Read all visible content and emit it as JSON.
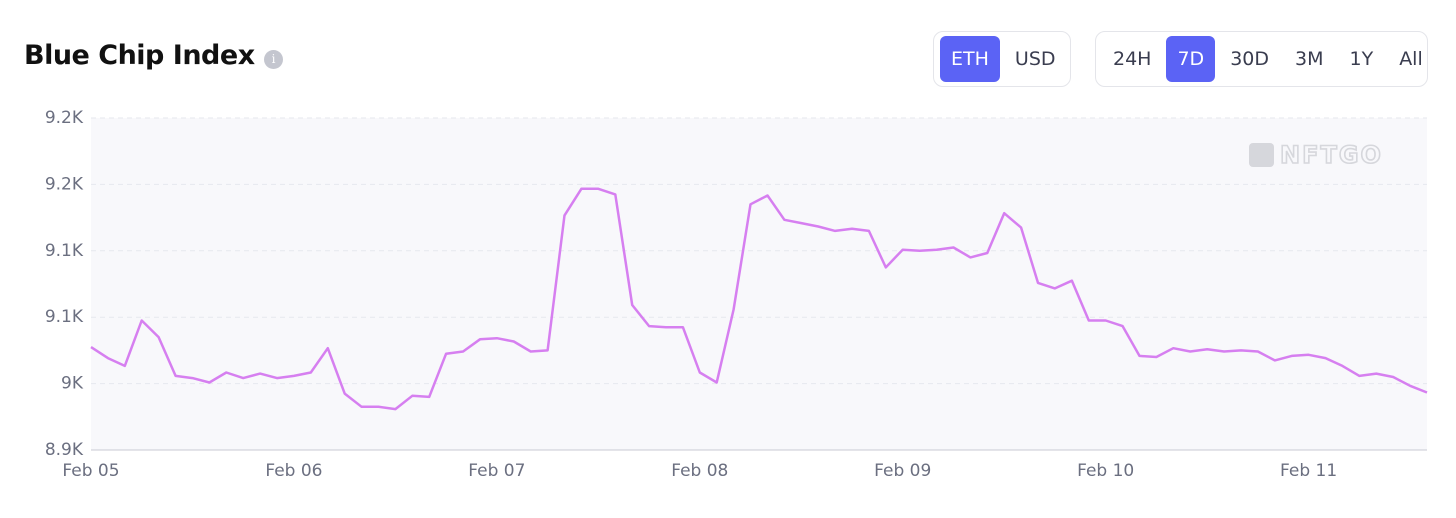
{
  "header": {
    "title": "Blue Chip Index",
    "info_icon": "i"
  },
  "currency_toggle": {
    "options": [
      "ETH",
      "USD"
    ],
    "selected": 0
  },
  "range_toggle": {
    "options": [
      "24H",
      "7D",
      "30D",
      "3M",
      "1Y",
      "All"
    ],
    "selected": 1
  },
  "chart_data": {
    "type": "line",
    "watermark": "NFTGO",
    "categories": [
      "Feb 05",
      null,
      null,
      null,
      null,
      null,
      null,
      null,
      null,
      null,
      null,
      null,
      "Feb 06",
      null,
      null,
      null,
      null,
      null,
      null,
      null,
      null,
      null,
      null,
      null,
      "Feb 07",
      null,
      null,
      null,
      null,
      null,
      null,
      null,
      null,
      null,
      null,
      null,
      "Feb 08",
      null,
      null,
      null,
      null,
      null,
      null,
      null,
      null,
      null,
      null,
      null,
      "Feb 09",
      null,
      null,
      null,
      null,
      null,
      null,
      null,
      null,
      null,
      null,
      null,
      "Feb 10",
      null,
      null,
      null,
      null,
      null,
      null,
      null,
      null,
      null,
      null,
      null,
      "Feb 11",
      null,
      null,
      null,
      null,
      null,
      null,
      null
    ],
    "series": [
      {
        "name": "Blue Chip Index",
        "color": "#d67ff0",
        "values": [
          9033,
          9023,
          9016,
          9057,
          9042,
          9007,
          9005,
          9001,
          9010,
          9005,
          9009,
          9005,
          9007,
          9010,
          9032,
          8991,
          8979,
          8979,
          8977,
          8989,
          8988,
          9027,
          9029,
          9040,
          9041,
          9038,
          9029,
          9030,
          9152,
          9176,
          9176,
          9171,
          9071,
          9052,
          9051,
          9051,
          9010,
          9001,
          9067,
          9162,
          9170,
          9148,
          9145,
          9142,
          9138,
          9140,
          9138,
          9105,
          9121,
          9120,
          9121,
          9123,
          9114,
          9118,
          9154,
          9141,
          9091,
          9086,
          9093,
          9057,
          9057,
          9052,
          9025,
          9024,
          9032,
          9029,
          9031,
          9029,
          9030,
          9029,
          9021,
          9025,
          9026,
          9023,
          9016,
          9007,
          9009,
          9006,
          8998,
          8992
        ]
      }
    ],
    "ylim": [
      8940,
      9240
    ],
    "yticks": [
      {
        "value": 8940,
        "label": "8.9K"
      },
      {
        "value": 9000,
        "label": "9K"
      },
      {
        "value": 9060,
        "label": "9.1K"
      },
      {
        "value": 9120,
        "label": "9.1K"
      },
      {
        "value": 9180,
        "label": "9.2K"
      },
      {
        "value": 9240,
        "label": "9.2K"
      }
    ],
    "grid": true
  }
}
